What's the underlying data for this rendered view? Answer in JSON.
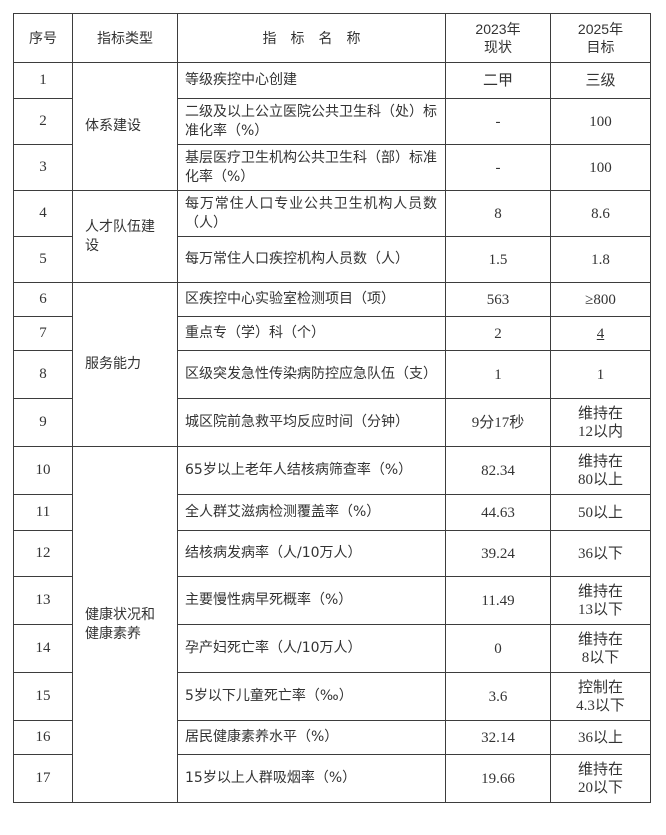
{
  "page": {
    "background_color": "#ffffff",
    "text_color": "#333333",
    "border_color": "#3d3d3d"
  },
  "table": {
    "headers": [
      "序号",
      "指标类型",
      "指　标　名　称",
      "2023年\n现状",
      "2025年\n目标"
    ],
    "groups": [
      {
        "label": "体系建设",
        "start": 0,
        "span": 3
      },
      {
        "label": "人才队伍建设",
        "start": 3,
        "span": 2
      },
      {
        "label": "服务能力",
        "start": 5,
        "span": 4
      },
      {
        "label": "健康状况和健康素养",
        "start": 9,
        "span": 8
      }
    ],
    "rows": [
      {
        "no": "1",
        "name": "等级疾控中心创建",
        "current": "二甲",
        "target": "三级"
      },
      {
        "no": "2",
        "name": "二级及以上公立医院公共卫生科（处）标准化率（%）",
        "current": "-",
        "target": "100"
      },
      {
        "no": "3",
        "name": "基层医疗卫生机构公共卫生科（部）标准化率（%）",
        "current": "-",
        "target": "100"
      },
      {
        "no": "4",
        "name": "每万常住人口专业公共卫生机构人员数（人）",
        "current": "8",
        "target": "8.6"
      },
      {
        "no": "5",
        "name": "每万常住人口疾控机构人员数（人）",
        "current": "1.5",
        "target": "1.8"
      },
      {
        "no": "6",
        "name": "区疾控中心实验室检测项目（项）",
        "current": "563",
        "target": "≥800"
      },
      {
        "no": "7",
        "name": "重点专（学）科（个）",
        "current": "2",
        "target": "4",
        "target_underline": true
      },
      {
        "no": "8",
        "name": "区级突发急性传染病防控应急队伍（支）",
        "current": "1",
        "target": "1"
      },
      {
        "no": "9",
        "name": "城区院前急救平均反应时间（分钟）",
        "current": "9分17秒",
        "target": "维持在\n12以内"
      },
      {
        "no": "10",
        "name": "65岁以上老年人结核病筛查率（%）",
        "current": "82.34",
        "target": "维持在\n80以上"
      },
      {
        "no": "11",
        "name": "全人群艾滋病检测覆盖率（%）",
        "current": "44.63",
        "target": "50以上"
      },
      {
        "no": "12",
        "name": "结核病发病率（人/10万人）",
        "current": "39.24",
        "target": "36以下"
      },
      {
        "no": "13",
        "name": "主要慢性病早死概率（%）",
        "current": "11.49",
        "target": "维持在\n13以下"
      },
      {
        "no": "14",
        "name": "孕产妇死亡率（人/10万人）",
        "current": "0",
        "target": "维持在\n8以下"
      },
      {
        "no": "15",
        "name": "5岁以下儿童死亡率（‰）",
        "current": "3.6",
        "target": "控制在\n4.3以下"
      },
      {
        "no": "16",
        "name": "居民健康素养水平（%）",
        "current": "32.14",
        "target": "36以上"
      },
      {
        "no": "17",
        "name": "15岁以上人群吸烟率（%）",
        "current": "19.66",
        "target": "维持在\n20以下"
      }
    ]
  }
}
